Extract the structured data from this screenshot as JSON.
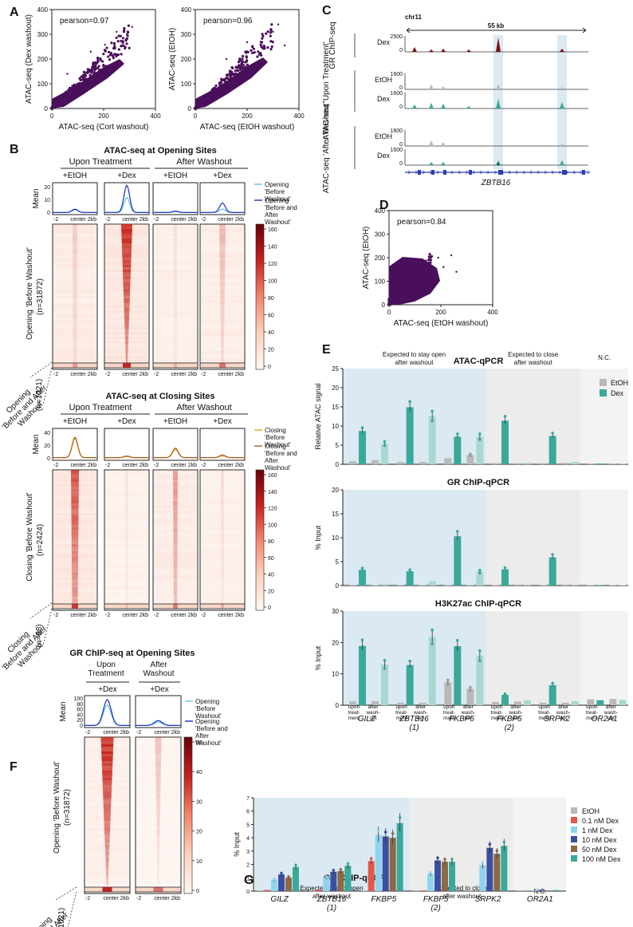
{
  "figure": {
    "panel_letters": [
      "A",
      "B",
      "C",
      "D",
      "E",
      "F",
      "G"
    ]
  },
  "colors": {
    "purple": "#4a0f5a",
    "teal": "#3aa99a",
    "teal_light": "#a9d8d0",
    "grey": "#b9b9b9",
    "red": "#e5564b",
    "sky": "#8fd4ee",
    "navy": "#3a4fa0",
    "brown": "#8c6a46",
    "lightblue_bg": "#dbe9f3",
    "grey_bg": "#ececea",
    "light_bg": "#f3f3f3",
    "darkred": "#7a0f12",
    "cyan_line": "#62c1e4",
    "blue_line": "#1c2fb8",
    "orange_line": "#f0a12a",
    "brown_line": "#a7601d"
  },
  "panelA": {
    "scatter1": {
      "pearson": "pearson=0.97",
      "xlabel": "ATAC-seq (Cort washout)",
      "ylabel": "ATAC-seq (Dex washout)",
      "xticks": [
        "0",
        "200",
        "400"
      ],
      "yticks": [
        "0",
        "100",
        "200",
        "300",
        "400"
      ]
    },
    "scatter2": {
      "pearson": "pearson=0.96",
      "xlabel": "ATAC-seq (EtOH washout)",
      "ylabel": "ATAC-seq (EtOH)",
      "xticks": [
        "0",
        "200",
        "400"
      ],
      "yticks": [
        "0",
        "100",
        "200",
        "300",
        "400"
      ]
    }
  },
  "panelB": {
    "opening": {
      "title": "ATAC-seq at Opening Sites",
      "group1": "Upon Treatment",
      "group2": "After Washout",
      "cols": [
        "+EtOH",
        "+Dex",
        "+EtOH",
        "+Dex"
      ],
      "mean_label": "Mean",
      "mean_yticks": [
        "0",
        "10",
        "20"
      ],
      "legend": [
        {
          "label": "Opening 'Before Washout'"
        },
        {
          "label": "Opening 'Before and After Washout'"
        }
      ],
      "xtick_left": "-2",
      "xtick_mid": "center 2kb",
      "cbar_ticks": [
        "0",
        "20",
        "40",
        "60",
        "80",
        "100",
        "120",
        "140",
        "160"
      ],
      "row_label_main": "Opening 'Before Washout'",
      "row_label_main_n": "(n=31872)",
      "row_label_small": "Opening 'Before and After Washout'",
      "row_label_small_n": "(n=1021)"
    },
    "closing": {
      "title": "ATAC-seq at Closing Sites",
      "group1": "Upon Treatment",
      "group2": "After Washout",
      "cols": [
        "+EtOH",
        "+Dex",
        "+EtOH",
        "+Dex"
      ],
      "mean_label": "Mean",
      "mean_yticks": [
        "0",
        "20",
        "40"
      ],
      "legend": [
        {
          "label": "Closing 'Before Washout'"
        },
        {
          "label": "Closing 'Before and After Washout'"
        }
      ],
      "xtick_left": "-2",
      "xtick_mid": "center 2kb",
      "cbar_ticks": [
        "0",
        "20",
        "40",
        "60",
        "80",
        "100",
        "120",
        "140",
        "160"
      ],
      "row_label_main": "Closing 'Before Washout'",
      "row_label_main_n": "(n=2424)",
      "row_label_small": "Closing 'Before and After Washout'",
      "row_label_small_n": "(n=68)"
    }
  },
  "panelC": {
    "chrom": "chr11",
    "scale": "55 kb",
    "gene": "ZBTB16",
    "asterisk": "*",
    "tracks": [
      {
        "group": "GR ChIP-seq",
        "cond": "Dex",
        "max": "2500",
        "min": "0"
      },
      {
        "group": "ATAC-seq 'Upon Treatment'",
        "cond": "EtOH",
        "max": "1600",
        "min": "0"
      },
      {
        "group": "ATAC-seq 'Upon Treatment'",
        "cond": "Dex",
        "max": "1600",
        "min": "0"
      },
      {
        "group": "ATAC-seq 'After Washout'",
        "cond": "EtOH",
        "max": "1600",
        "min": "0"
      },
      {
        "group": "ATAC-seq 'After Washout'",
        "cond": "Dex",
        "max": "1600",
        "min": "0"
      }
    ],
    "group_labels": [
      "GR ChIP-seq",
      "ATAC-seq 'Upon Treatment'",
      "ATAC-seq 'After Washout'"
    ]
  },
  "panelD": {
    "pearson": "pearson=0.84",
    "xlabel": "ATAC-seq (EtOH washout)",
    "ylabel": "ATAC-seq (EtOH)",
    "xticks": [
      "0",
      "200",
      "400"
    ],
    "yticks": [
      "0",
      "100",
      "200",
      "300",
      "400"
    ]
  },
  "chart_data": [
    {
      "type": "bar",
      "id": "E1",
      "title": "ATAC-qPCR",
      "ylabel": "Relative ATAC signal",
      "ylim": [
        0,
        25
      ],
      "yticks": [
        "0",
        "5",
        "10",
        "15",
        "20",
        "25"
      ],
      "regions": [
        "Expected to stay open after washout",
        "Expected to close after washout",
        "N.C."
      ],
      "legend": [
        "EtOH",
        "Dex"
      ],
      "bars": [
        {
          "g": 0,
          "s": 0,
          "v": 0.8
        },
        {
          "g": 0,
          "s": 1,
          "v": 8.7
        },
        {
          "g": 0,
          "s": 2,
          "v": 1.1
        },
        {
          "g": 0,
          "s": 3,
          "v": 5.4
        },
        {
          "g": 1,
          "s": 0,
          "v": 0.6
        },
        {
          "g": 1,
          "s": 1,
          "v": 14.9
        },
        {
          "g": 1,
          "s": 2,
          "v": 0.6
        },
        {
          "g": 1,
          "s": 3,
          "v": 12.6
        },
        {
          "g": 2,
          "s": 0,
          "v": 1.6
        },
        {
          "g": 2,
          "s": 1,
          "v": 7.2
        },
        {
          "g": 2,
          "s": 2,
          "v": 2.4
        },
        {
          "g": 2,
          "s": 3,
          "v": 7.2
        },
        {
          "g": 3,
          "s": 0,
          "v": 0.3
        },
        {
          "g": 3,
          "s": 1,
          "v": 11.4
        },
        {
          "g": 3,
          "s": 2,
          "v": 0.3
        },
        {
          "g": 3,
          "s": 3,
          "v": 0.4
        },
        {
          "g": 4,
          "s": 0,
          "v": 0.3
        },
        {
          "g": 4,
          "s": 1,
          "v": 7.4
        },
        {
          "g": 4,
          "s": 2,
          "v": 0.4
        },
        {
          "g": 4,
          "s": 3,
          "v": 0.6
        },
        {
          "g": 5,
          "s": 0,
          "v": 0.2
        },
        {
          "g": 5,
          "s": 1,
          "v": 0.2
        },
        {
          "g": 5,
          "s": 2,
          "v": 0.2
        },
        {
          "g": 5,
          "s": 3,
          "v": 0.2
        }
      ]
    },
    {
      "type": "bar",
      "id": "E2",
      "title": "GR ChIP-qPCR",
      "ylabel": "% Input",
      "ylim": [
        0,
        20
      ],
      "yticks": [
        "0",
        "5",
        "10",
        "15",
        "20"
      ],
      "bars": [
        {
          "g": 0,
          "s": 0,
          "v": 0.1
        },
        {
          "g": 0,
          "s": 1,
          "v": 3.3
        },
        {
          "g": 0,
          "s": 2,
          "v": 0.1
        },
        {
          "g": 0,
          "s": 3,
          "v": 0.3
        },
        {
          "g": 1,
          "s": 0,
          "v": 0.1
        },
        {
          "g": 1,
          "s": 1,
          "v": 3.0
        },
        {
          "g": 1,
          "s": 2,
          "v": 0.1
        },
        {
          "g": 1,
          "s": 3,
          "v": 0.9
        },
        {
          "g": 2,
          "s": 0,
          "v": 0.1
        },
        {
          "g": 2,
          "s": 1,
          "v": 10.3
        },
        {
          "g": 2,
          "s": 2,
          "v": 0.1
        },
        {
          "g": 2,
          "s": 3,
          "v": 2.9
        },
        {
          "g": 3,
          "s": 0,
          "v": 0.1
        },
        {
          "g": 3,
          "s": 1,
          "v": 3.4
        },
        {
          "g": 3,
          "s": 2,
          "v": 0.2
        },
        {
          "g": 3,
          "s": 3,
          "v": 0.2
        },
        {
          "g": 4,
          "s": 0,
          "v": 0.1
        },
        {
          "g": 4,
          "s": 1,
          "v": 5.9
        },
        {
          "g": 4,
          "s": 2,
          "v": 0.2
        },
        {
          "g": 4,
          "s": 3,
          "v": 0.2
        },
        {
          "g": 5,
          "s": 0,
          "v": 0.1
        },
        {
          "g": 5,
          "s": 1,
          "v": 0.1
        },
        {
          "g": 5,
          "s": 2,
          "v": 0.1
        },
        {
          "g": 5,
          "s": 3,
          "v": 0.1
        }
      ]
    },
    {
      "type": "bar",
      "id": "E3",
      "title": "H3K27ac ChIP-qPCR",
      "ylabel": "% Input",
      "ylim": [
        0,
        30
      ],
      "yticks": [
        "0",
        "10",
        "20",
        "30"
      ],
      "xcats": [
        "GILZ",
        "ZBTB16 (1)",
        "FKBP5",
        "FKBP5 (2)",
        "SRPK2",
        "OR2A1"
      ],
      "subcats": [
        "upon treat-ment",
        "after wash-out"
      ],
      "bars": [
        {
          "g": 0,
          "s": 0,
          "v": 1.2
        },
        {
          "g": 0,
          "s": 1,
          "v": 18.9
        },
        {
          "g": 0,
          "s": 2,
          "v": 1.3
        },
        {
          "g": 0,
          "s": 3,
          "v": 13.0
        },
        {
          "g": 1,
          "s": 0,
          "v": 0.8
        },
        {
          "g": 1,
          "s": 1,
          "v": 12.8
        },
        {
          "g": 1,
          "s": 2,
          "v": 0.8
        },
        {
          "g": 1,
          "s": 3,
          "v": 21.8
        },
        {
          "g": 2,
          "s": 0,
          "v": 7.3
        },
        {
          "g": 2,
          "s": 1,
          "v": 18.8
        },
        {
          "g": 2,
          "s": 2,
          "v": 5.2
        },
        {
          "g": 2,
          "s": 3,
          "v": 15.8
        },
        {
          "g": 3,
          "s": 0,
          "v": 1.0
        },
        {
          "g": 3,
          "s": 1,
          "v": 3.3
        },
        {
          "g": 3,
          "s": 2,
          "v": 1.2
        },
        {
          "g": 3,
          "s": 3,
          "v": 1.6
        },
        {
          "g": 4,
          "s": 0,
          "v": 0.8
        },
        {
          "g": 4,
          "s": 1,
          "v": 6.4
        },
        {
          "g": 4,
          "s": 2,
          "v": 0.8
        },
        {
          "g": 4,
          "s": 3,
          "v": 1.3
        },
        {
          "g": 5,
          "s": 0,
          "v": 1.9
        },
        {
          "g": 5,
          "s": 1,
          "v": 1.6
        },
        {
          "g": 5,
          "s": 2,
          "v": 2.0
        },
        {
          "g": 5,
          "s": 3,
          "v": 1.7
        }
      ]
    },
    {
      "type": "bar",
      "id": "G",
      "title": "GR ChIP-qPCR",
      "ylabel": "% Input",
      "ylim": [
        0,
        7
      ],
      "yticks": [
        "0",
        "1",
        "2",
        "3",
        "4",
        "5",
        "6",
        "7"
      ],
      "regions": [
        "Expected to stay open after washout",
        "Expected to close after washout",
        "N.C."
      ],
      "xcats": [
        "GILZ",
        "ZBTB16 (1)",
        "FKBP5",
        "FKBP5 (2)",
        "SRPK2",
        "OR2A1"
      ],
      "legend": [
        "EtOH",
        "0.1 nM Dex",
        "1 nM Dex",
        "10 nM Dex",
        "50 nM Dex",
        "100 nM Dex"
      ],
      "groups": [
        [
          0.02,
          0.08,
          0.85,
          1.25,
          1.0,
          1.8
        ],
        [
          0.02,
          0.1,
          1.0,
          1.45,
          1.5,
          1.9
        ],
        [
          0.03,
          2.25,
          4.2,
          4.1,
          4.0,
          5.1
        ],
        [
          0.02,
          0.05,
          1.3,
          2.3,
          2.2,
          2.2
        ],
        [
          0.02,
          0.02,
          1.95,
          3.25,
          2.8,
          3.4
        ],
        [
          0.02,
          0.02,
          0.06,
          0.08,
          0.05,
          0.08
        ]
      ]
    }
  ],
  "panelF": {
    "title": "GR ChIP-seq at Opening Sites",
    "cols_top": [
      "Upon Treatment",
      "After Washout"
    ],
    "cols": [
      "+Dex",
      "+Dex"
    ],
    "mean_label": "Mean",
    "mean_yticks": [
      "0",
      "20",
      "40",
      "60",
      "80",
      "100"
    ],
    "legend": [
      {
        "label": "Opening 'Before Washout'"
      },
      {
        "label": "Opening 'Before and After Washout'"
      }
    ],
    "xtick_left": "-2",
    "xtick_mid": "center 2kb",
    "cbar_ticks": [
      "0",
      "10",
      "20",
      "30",
      "40",
      "50"
    ],
    "row_label_main": "Opening 'Before Washout'",
    "row_label_main_n": "(n=31872)",
    "row_label_small": "Opening 'Before and After Washout'",
    "row_label_small_n": "(n=1021)"
  }
}
